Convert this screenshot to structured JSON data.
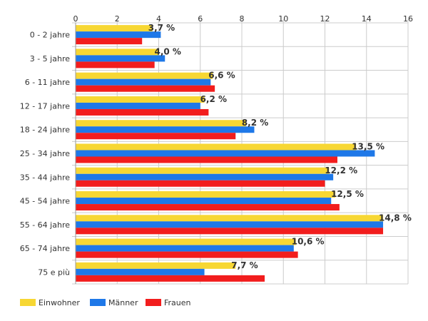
{
  "chart_data": {
    "type": "bar",
    "orientation": "horizontal",
    "categories": [
      "0 - 2 jahre",
      "3 - 5 jahre",
      "6 - 11 jahre",
      "12 - 17 jahre",
      "18 - 24 jahre",
      "25 - 34 jahre",
      "35 - 44 jahre",
      "45 - 54 jahre",
      "55 - 64 jahre",
      "65 - 74 jahre",
      "75 e più"
    ],
    "series": [
      {
        "name": "Einwohner",
        "color": "#f7d733",
        "values": [
          3.7,
          4.0,
          6.6,
          6.2,
          8.2,
          13.5,
          12.2,
          12.5,
          14.8,
          10.6,
          7.7
        ]
      },
      {
        "name": "Männer",
        "color": "#1e78e8",
        "values": [
          4.1,
          4.3,
          6.5,
          6.0,
          8.6,
          14.4,
          12.4,
          12.3,
          14.8,
          10.5,
          6.2
        ]
      },
      {
        "name": "Frauen",
        "color": "#f21d1d",
        "values": [
          3.2,
          3.8,
          6.7,
          6.4,
          7.7,
          12.6,
          12.0,
          12.7,
          14.8,
          10.7,
          9.1
        ]
      }
    ],
    "data_labels": [
      "3,7 %",
      "4,0 %",
      "6,6 %",
      "6,2 %",
      "8,2 %",
      "13,5 %",
      "12,2 %",
      "12,5 %",
      "14,8 %",
      "10,6 %",
      "7,7 %"
    ],
    "x_ticks": [
      "0",
      "2",
      "4",
      "6",
      "8",
      "10",
      "12",
      "14",
      "16"
    ],
    "xlim": [
      0,
      16
    ],
    "grid": true,
    "legend_position": "bottom-left",
    "title": "",
    "xlabel": "",
    "ylabel": ""
  }
}
